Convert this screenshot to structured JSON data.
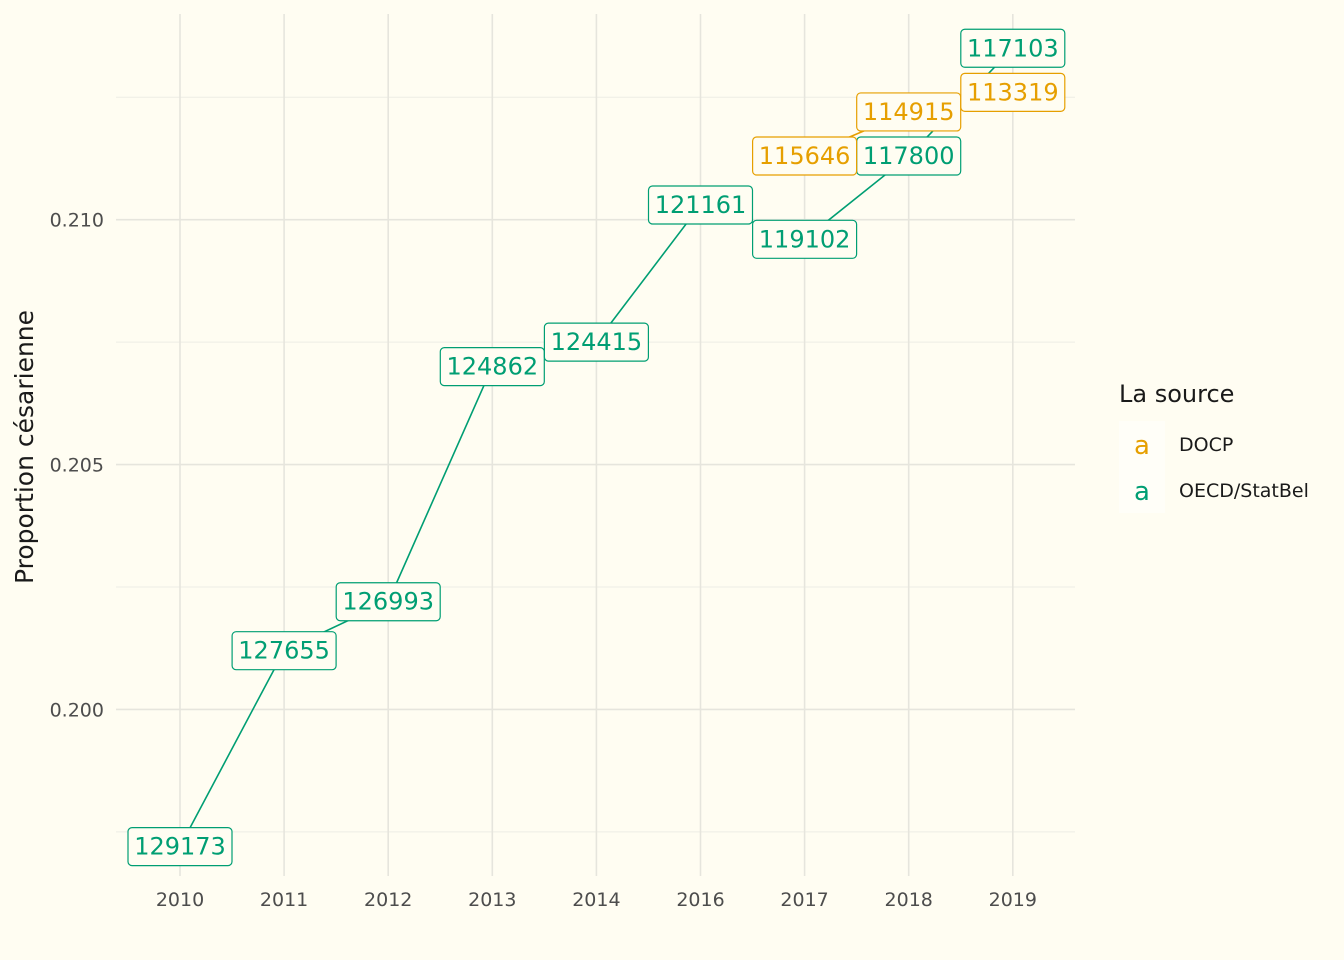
{
  "chart_data": {
    "type": "line",
    "xlabel": "",
    "ylabel": "Proportion césarienne",
    "categories": [
      "2010",
      "2011",
      "2012",
      "2013",
      "2014",
      "2016",
      "2017",
      "2018",
      "2019"
    ],
    "y_ticks": [
      "0.200",
      "0.205",
      "0.210"
    ],
    "ylim": [
      0.1966,
      0.2142
    ],
    "grid": true,
    "legend": {
      "title": "La source",
      "position": "right",
      "key_glyph": "a",
      "entries": [
        {
          "name": "DOCP",
          "color": "#e69f00"
        },
        {
          "name": "OECD/StatBel",
          "color": "#009e73"
        }
      ]
    },
    "series": [
      {
        "name": "OECD/StatBel",
        "color": "#009e73",
        "points": [
          {
            "x": "2010",
            "y": 0.1972,
            "label": "129173"
          },
          {
            "x": "2011",
            "y": 0.2012,
            "label": "127655"
          },
          {
            "x": "2012",
            "y": 0.2022,
            "label": "126993"
          },
          {
            "x": "2013",
            "y": 0.207,
            "label": "124862"
          },
          {
            "x": "2014",
            "y": 0.2075,
            "label": "124415"
          },
          {
            "x": "2016",
            "y": 0.2103,
            "label": "121161"
          },
          {
            "x": "2017",
            "y": 0.2096,
            "label": "119102"
          },
          {
            "x": "2018",
            "y": 0.2113,
            "label": "117800"
          },
          {
            "x": "2019",
            "y": 0.2135,
            "label": "117103"
          }
        ]
      },
      {
        "name": "DOCP",
        "color": "#e69f00",
        "points": [
          {
            "x": "2017",
            "y": 0.2113,
            "label": "115646"
          },
          {
            "x": "2018",
            "y": 0.2122,
            "label": "114915"
          },
          {
            "x": "2019",
            "y": 0.2126,
            "label": "113319"
          }
        ]
      }
    ]
  }
}
